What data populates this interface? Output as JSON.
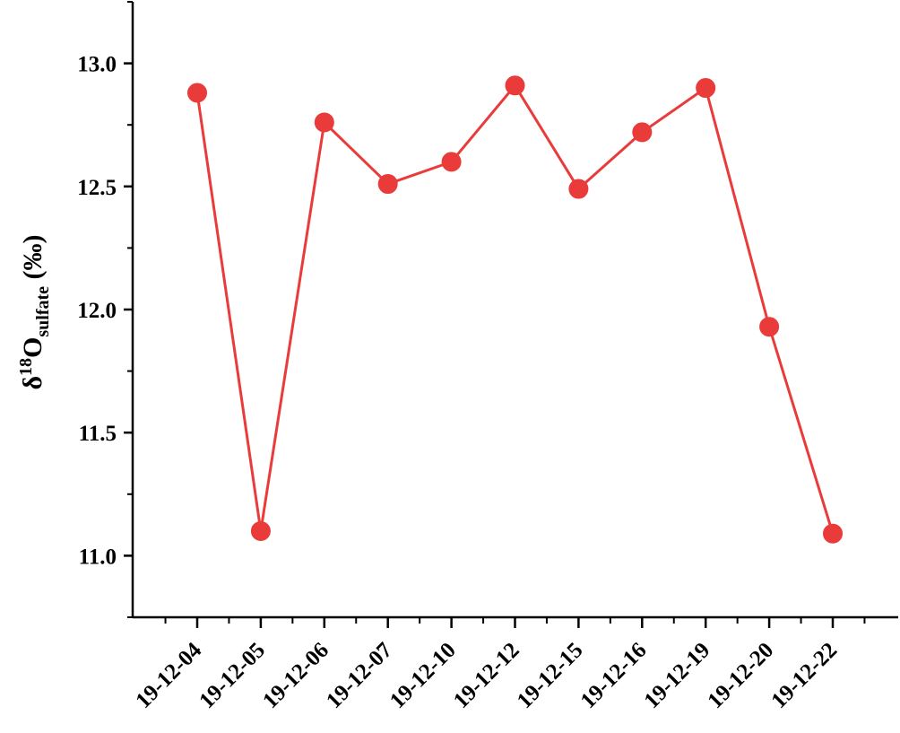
{
  "chart_data": {
    "type": "line",
    "categories": [
      "19-12-04",
      "19-12-05",
      "19-12-06",
      "19-12-07",
      "19-12-10",
      "19-12-12",
      "19-12-15",
      "19-12-16",
      "19-12-19",
      "19-12-20",
      "19-12-22"
    ],
    "series": [
      {
        "values": [
          12.88,
          11.1,
          12.76,
          12.51,
          12.6,
          12.91,
          12.49,
          12.72,
          12.9,
          11.93,
          11.09
        ],
        "color": "#ea3b3b",
        "marker": "circle"
      }
    ],
    "ylabel": {
      "main": "δ",
      "superscript": "18",
      "element": "O",
      "subscript": "sulfate",
      "unit": " (‰)"
    },
    "ylim": [
      10.75,
      13.25
    ],
    "yticks": [
      11.0,
      11.5,
      12.0,
      12.5,
      13.0
    ],
    "yticks_labels": [
      "11.0",
      "11.5",
      "12.0",
      "12.5",
      "13.0"
    ],
    "grid": false,
    "legend": "none"
  }
}
